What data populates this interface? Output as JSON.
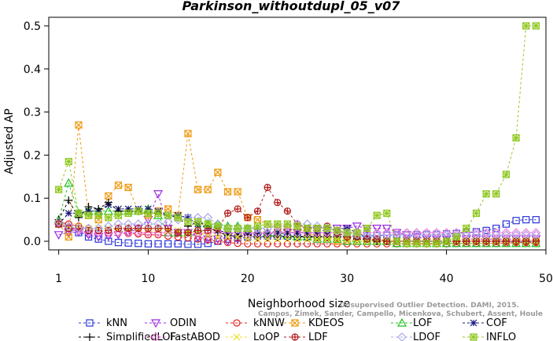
{
  "chart_data": {
    "type": "line",
    "title": "Parkinson_withoutdupl_05_v07",
    "xlabel": "Neighborhood size",
    "ylabel": "Adjusted AP",
    "xlim": [
      0,
      50
    ],
    "ylim": [
      -0.02,
      0.52
    ],
    "xticks": [
      "1",
      "10",
      "20",
      "30",
      "40",
      "50"
    ],
    "yticks": [
      "0.0",
      "0.1",
      "0.2",
      "0.3",
      "0.4",
      "0.5"
    ],
    "watermark": [
      "Campos, Zimek, Sander, Campello, Micenkova, Schubert, Assent, Houle",
      "Unsupervised Outlier Detection. DAMI, 2015."
    ],
    "legend_position": "bottom",
    "x": [
      1,
      2,
      3,
      4,
      5,
      6,
      7,
      8,
      9,
      10,
      11,
      12,
      13,
      14,
      15,
      16,
      17,
      18,
      19,
      20,
      21,
      22,
      23,
      24,
      25,
      26,
      27,
      28,
      29,
      30,
      31,
      32,
      33,
      34,
      35,
      36,
      37,
      38,
      39,
      40,
      41,
      42,
      43,
      44,
      45,
      46,
      47,
      48,
      49
    ],
    "series": [
      {
        "name": "kNN",
        "color": "#2b36d8",
        "marker": "square",
        "values": [
          0.04,
          0.03,
          0.02,
          0.01,
          0.005,
          0.0,
          -0.003,
          -0.004,
          -0.005,
          -0.006,
          -0.006,
          -0.006,
          -0.006,
          -0.007,
          -0.007,
          -0.005,
          0.0,
          0.005,
          0.008,
          0.01,
          0.012,
          0.012,
          0.012,
          0.012,
          0.012,
          0.012,
          0.012,
          0.012,
          0.012,
          0.012,
          0.012,
          0.012,
          0.013,
          0.014,
          0.015,
          0.015,
          0.015,
          0.016,
          0.016,
          0.017,
          0.018,
          0.02,
          0.022,
          0.025,
          0.03,
          0.04,
          0.048,
          0.05,
          0.05
        ]
      },
      {
        "name": "ODIN",
        "color": "#9a2be0",
        "marker": "triangle-down",
        "values": [
          0.015,
          0.02,
          0.022,
          0.015,
          0.01,
          0.012,
          0.015,
          0.02,
          0.03,
          0.05,
          0.11,
          0.03,
          0.02,
          0.02,
          0.01,
          0.005,
          0.005,
          0.0,
          0.005,
          0.01,
          0.01,
          0.01,
          0.015,
          0.02,
          0.02,
          0.025,
          0.025,
          0.025,
          0.03,
          0.03,
          0.035,
          0.03,
          0.03,
          0.03,
          0.02,
          0.015,
          0.01,
          0.005,
          0.005,
          0.005,
          0.005,
          0.005,
          0.005,
          0.005,
          0.005,
          0.005,
          0.005,
          0.005,
          0.005
        ]
      },
      {
        "name": "kNNW",
        "color": "#e02020",
        "marker": "circle",
        "values": [
          0.045,
          0.04,
          0.035,
          0.03,
          0.025,
          0.02,
          0.02,
          0.018,
          0.017,
          0.015,
          0.015,
          0.012,
          0.01,
          0.008,
          0.005,
          0.003,
          0.0,
          -0.003,
          -0.005,
          -0.006,
          -0.006,
          -0.006,
          -0.006,
          -0.006,
          -0.006,
          -0.006,
          -0.006,
          -0.006,
          -0.006,
          -0.006,
          -0.006,
          -0.006,
          -0.006,
          -0.006,
          -0.006,
          -0.006,
          -0.006,
          -0.006,
          -0.006,
          -0.006,
          -0.005,
          -0.005,
          -0.005,
          -0.005,
          -0.005,
          -0.004,
          -0.003,
          -0.003,
          -0.003
        ]
      },
      {
        "name": "KDEOS",
        "color": "#ee9a10",
        "marker": "square-x",
        "values": [
          0.04,
          0.01,
          0.27,
          0.06,
          0.05,
          0.105,
          0.13,
          0.125,
          0.07,
          0.06,
          0.07,
          0.075,
          0.06,
          0.25,
          0.12,
          0.12,
          0.16,
          0.115,
          0.115,
          0.055,
          0.05,
          0.04,
          0.03,
          0.03,
          0.03,
          0.02,
          0.01,
          0.01,
          0.0,
          0.0,
          0.0,
          0.0,
          0.0,
          0.0,
          0.0,
          0.0,
          0.0,
          0.0,
          0.0,
          0.0,
          0.0,
          0.0,
          0.0,
          0.0,
          0.0,
          0.0,
          0.0,
          0.0,
          0.0
        ]
      },
      {
        "name": "LOF",
        "color": "#20c020",
        "marker": "triangle",
        "values": [
          0.05,
          0.135,
          0.065,
          0.07,
          0.07,
          0.07,
          0.07,
          0.07,
          0.07,
          0.075,
          0.06,
          0.02,
          0.02,
          0.02,
          0.03,
          0.04,
          0.04,
          0.035,
          0.035,
          0.03,
          0.025,
          0.02,
          0.02,
          0.015,
          0.01,
          0.01,
          0.005,
          0.005,
          0.005,
          0.0,
          0.0,
          0.0,
          0.0,
          0.0,
          -0.005,
          -0.005,
          -0.005,
          -0.005,
          -0.005,
          -0.005,
          -0.005,
          -0.005,
          -0.005,
          -0.005,
          -0.005,
          -0.005,
          -0.005,
          -0.005,
          -0.005
        ]
      },
      {
        "name": "COF",
        "color": "#1a1a80",
        "marker": "star",
        "values": [
          0.04,
          0.065,
          0.065,
          0.07,
          0.07,
          0.085,
          0.075,
          0.075,
          0.075,
          0.075,
          0.07,
          0.06,
          0.06,
          0.055,
          0.04,
          0.03,
          0.025,
          0.02,
          0.015,
          0.02,
          0.02,
          0.02,
          0.02,
          0.02,
          0.02,
          0.02,
          0.02,
          0.02,
          0.025,
          0.03,
          0.02,
          0.01,
          0.005,
          0.0,
          0.0,
          0.0,
          0.0,
          0.0,
          0.0,
          0.0,
          0.0,
          0.0,
          0.0,
          0.0,
          0.0,
          0.0,
          0.0,
          0.0,
          0.0
        ]
      },
      {
        "name": "SimplifiedLOF",
        "color": "#000000",
        "marker": "plus",
        "values": [
          0.05,
          0.095,
          0.055,
          0.08,
          0.075,
          0.09,
          0.07,
          0.07,
          0.07,
          0.065,
          0.065,
          0.06,
          0.055,
          0.035,
          0.045,
          0.035,
          0.02,
          0.015,
          0.01,
          0.015,
          0.01,
          0.01,
          0.01,
          0.01,
          0.01,
          0.01,
          0.01,
          0.01,
          0.01,
          0.01,
          0.005,
          0.005,
          0.0,
          0.0,
          0.0,
          0.0,
          0.0,
          0.0,
          0.0,
          0.0,
          0.0,
          0.0,
          0.0,
          0.0,
          0.0,
          0.0,
          0.0,
          0.0,
          0.0
        ]
      },
      {
        "name": "FastABOD",
        "color": "#f07ad8",
        "marker": "diamond",
        "values": [
          0.04,
          0.03,
          0.025,
          0.02,
          0.02,
          0.02,
          0.02,
          0.02,
          0.02,
          0.02,
          0.02,
          0.02,
          0.02,
          0.02,
          0.02,
          0.02,
          0.02,
          0.02,
          0.02,
          0.02,
          0.02,
          0.02,
          0.02,
          0.02,
          0.02,
          0.02,
          0.02,
          0.02,
          0.02,
          0.02,
          0.02,
          0.02,
          0.02,
          0.02,
          0.02,
          0.02,
          0.02,
          0.02,
          0.02,
          0.02,
          0.02,
          0.02,
          0.02,
          0.02,
          0.02,
          0.02,
          0.02,
          0.02,
          0.02
        ]
      },
      {
        "name": "LoOP",
        "color": "#e8e020",
        "marker": "x",
        "values": [
          0.045,
          0.03,
          0.035,
          0.03,
          0.03,
          0.03,
          0.03,
          0.03,
          0.03,
          0.03,
          0.03,
          0.025,
          0.025,
          0.02,
          0.02,
          0.015,
          0.01,
          0.01,
          0.01,
          0.005,
          0.005,
          0.005,
          0.005,
          0.005,
          0.005,
          0.005,
          0.005,
          0.005,
          0.005,
          0.005,
          0.0,
          0.0,
          0.0,
          0.0,
          0.0,
          0.0,
          0.0,
          0.0,
          0.0,
          0.0,
          0.0,
          0.0,
          0.0,
          0.0,
          0.0,
          0.0,
          0.0,
          0.0,
          0.0
        ]
      },
      {
        "name": "LDF",
        "color": "#b01818",
        "marker": "circle-plus",
        "values": [
          0.04,
          0.03,
          0.03,
          0.025,
          0.025,
          0.025,
          0.03,
          0.03,
          0.03,
          0.03,
          0.03,
          0.03,
          0.02,
          0.02,
          0.025,
          0.025,
          0.03,
          0.065,
          0.075,
          0.055,
          0.07,
          0.125,
          0.09,
          0.07,
          0.04,
          0.03,
          0.03,
          0.035,
          0.02,
          0.01,
          0.01,
          0.005,
          0.005,
          0.0,
          0.0,
          0.0,
          0.0,
          0.0,
          0.0,
          0.0,
          0.0,
          0.0,
          0.0,
          0.0,
          0.0,
          0.0,
          0.0,
          0.0,
          0.0
        ]
      },
      {
        "name": "LDOF",
        "color": "#a8a8e8",
        "marker": "diamond",
        "values": [
          0.045,
          0.035,
          0.03,
          0.03,
          0.03,
          0.035,
          0.04,
          0.04,
          0.04,
          0.04,
          0.04,
          0.045,
          0.05,
          0.055,
          0.055,
          0.055,
          0.04,
          0.03,
          0.03,
          0.03,
          0.03,
          0.03,
          0.035,
          0.035,
          0.04,
          0.04,
          0.035,
          0.03,
          0.025,
          0.02,
          0.015,
          0.015,
          0.015,
          0.015,
          0.015,
          0.015,
          0.015,
          0.015,
          0.015,
          0.015,
          0.015,
          0.015,
          0.015,
          0.015,
          0.015,
          0.015,
          0.015,
          0.015,
          0.015
        ]
      },
      {
        "name": "INFLO",
        "color": "#90c820",
        "marker": "square-star",
        "values": [
          0.12,
          0.185,
          0.065,
          0.06,
          0.06,
          0.055,
          0.06,
          0.065,
          0.07,
          0.065,
          0.065,
          0.06,
          0.055,
          0.045,
          0.045,
          0.04,
          0.035,
          0.03,
          0.03,
          0.03,
          0.035,
          0.04,
          0.04,
          0.04,
          0.035,
          0.03,
          0.03,
          0.03,
          0.025,
          0.02,
          0.02,
          0.03,
          0.06,
          0.065,
          0.0,
          -0.005,
          -0.005,
          -0.005,
          -0.005,
          0.0,
          0.01,
          0.03,
          0.065,
          0.11,
          0.11,
          0.155,
          0.24,
          0.5,
          0.5
        ]
      }
    ]
  }
}
